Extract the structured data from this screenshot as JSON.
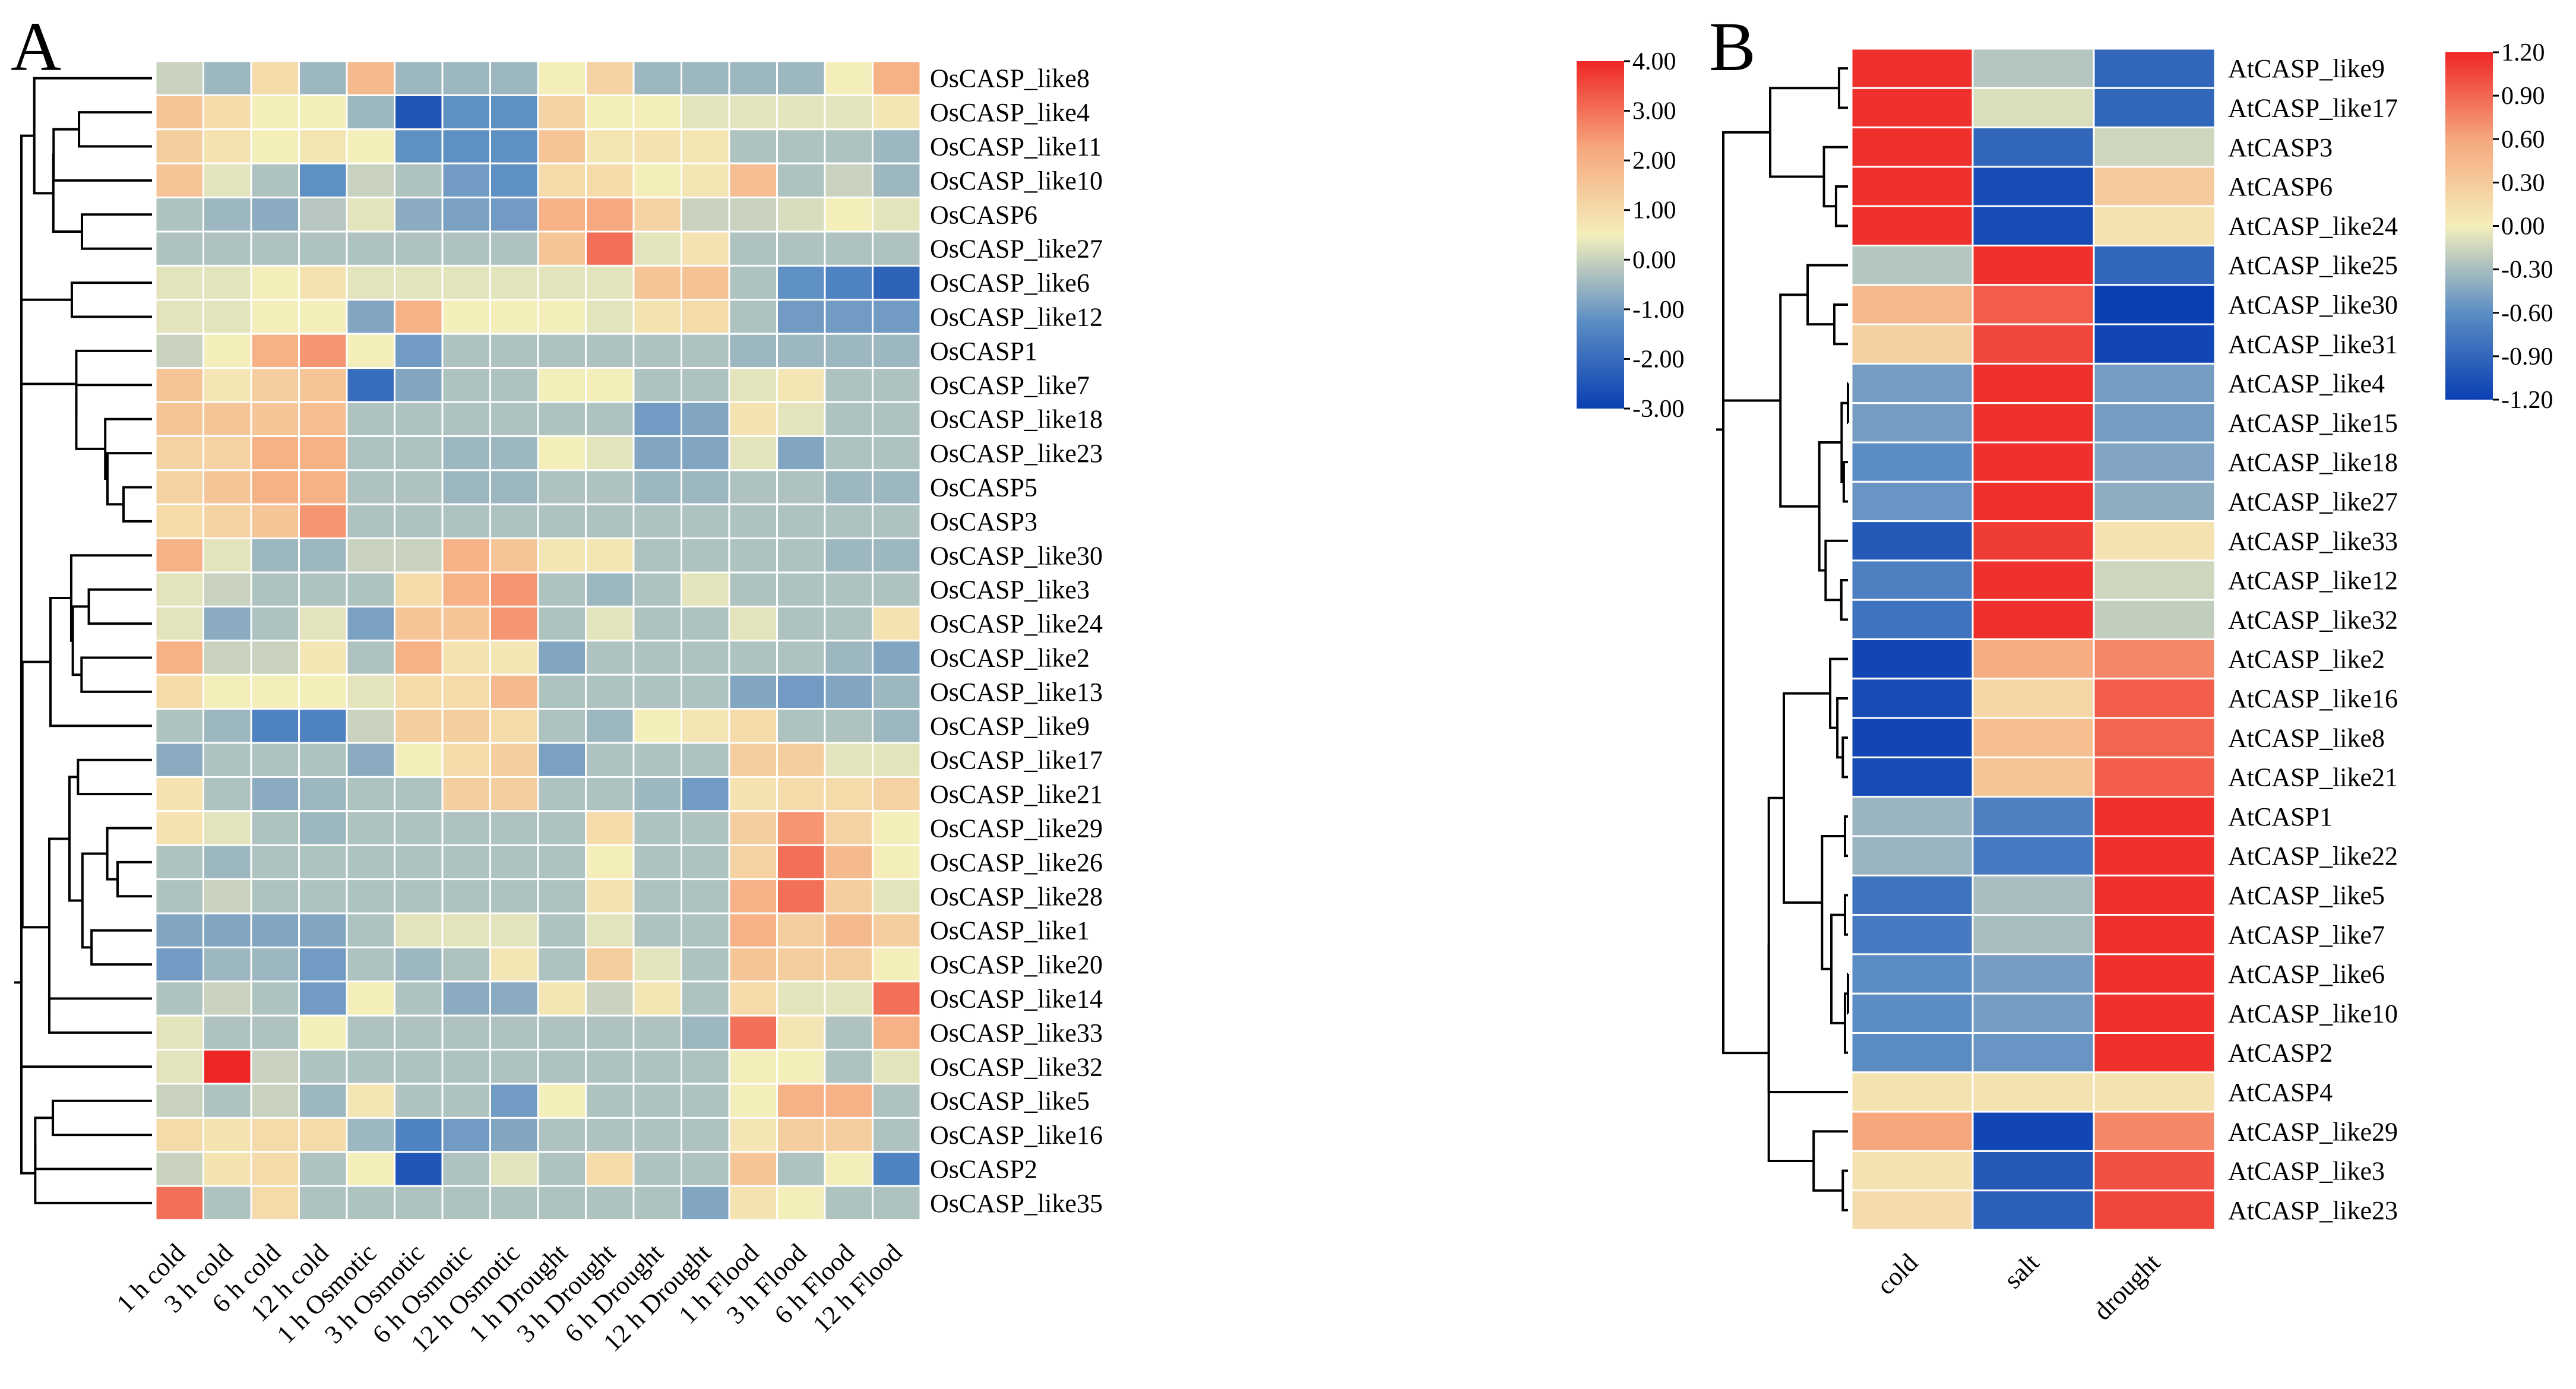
{
  "colors": {
    "scale_low": "#0a3fb2",
    "scale_mid_low": "#5b8dc4",
    "scale_mid": "#f4eebb",
    "scale_mid_high": "#f6a77e",
    "scale_high": "#ee2626",
    "cell_border": "#ffffff",
    "dendrogram": "#000000"
  },
  "chart_data": [
    {
      "type": "heatmap",
      "panel": "A",
      "columns": [
        "1 h cold",
        "3 h cold",
        "6 h cold",
        "12 h cold",
        "1 h Osmotic",
        "3 h Osmotic",
        "6 h Osmotic",
        "12 h Osmotic",
        "1 h Drought",
        "3 h Drought",
        "6 h Drought",
        "12 h Drought",
        "1 h Flood",
        "3 h Flood",
        "6 h Flood",
        "12 h Flood"
      ],
      "rows": [
        "OsCASP_like8",
        "OsCASP_like4",
        "OsCASP_like11",
        "OsCASP_like10",
        "OsCASP6",
        "OsCASP_like27",
        "OsCASP_like6",
        "OsCASP_like12",
        "OsCASP1",
        "OsCASP_like7",
        "OsCASP_like18",
        "OsCASP_like23",
        "OsCASP5",
        "OsCASP3",
        "OsCASP_like30",
        "OsCASP_like3",
        "OsCASP_like24",
        "OsCASP_like2",
        "OsCASP_like13",
        "OsCASP_like9",
        "OsCASP_like17",
        "OsCASP_like21",
        "OsCASP_like29",
        "OsCASP_like26",
        "OsCASP_like28",
        "OsCASP_like1",
        "OsCASP_like20",
        "OsCASP_like14",
        "OsCASP_like33",
        "OsCASP_like32",
        "OsCASP_like5",
        "OsCASP_like16",
        "OsCASP2",
        "OsCASP_like35"
      ],
      "values": [
        [
          0.0,
          -0.5,
          1.0,
          -0.5,
          1.8,
          -0.5,
          -0.5,
          -0.5,
          0.5,
          1.2,
          -0.5,
          -0.5,
          -0.5,
          -0.5,
          0.5,
          2.0
        ],
        [
          1.5,
          1.0,
          0.5,
          0.5,
          -0.5,
          -2.5,
          -1.2,
          -1.2,
          1.2,
          0.5,
          0.5,
          0.3,
          0.3,
          0.3,
          0.3,
          0.7
        ],
        [
          1.3,
          0.8,
          0.5,
          0.7,
          0.5,
          -1.2,
          -1.2,
          -1.2,
          1.5,
          0.7,
          0.8,
          0.7,
          -0.3,
          -0.3,
          -0.3,
          -0.5
        ],
        [
          1.5,
          0.3,
          -0.3,
          -1.2,
          0.0,
          -0.3,
          -1.0,
          -1.2,
          1.0,
          1.0,
          0.5,
          0.7,
          1.7,
          -0.3,
          0.0,
          -0.5
        ],
        [
          -0.3,
          -0.5,
          -0.7,
          -0.2,
          0.3,
          -0.7,
          -0.9,
          -1.0,
          2.0,
          2.2,
          1.2,
          0.0,
          0.0,
          0.2,
          0.5,
          0.3
        ],
        [
          -0.3,
          -0.3,
          -0.3,
          -0.3,
          -0.3,
          -0.3,
          -0.3,
          -0.3,
          1.5,
          3.0,
          0.3,
          0.8,
          -0.3,
          -0.3,
          -0.3,
          -0.3
        ],
        [
          0.3,
          0.3,
          0.5,
          0.8,
          0.3,
          0.3,
          0.3,
          0.3,
          0.3,
          0.3,
          1.5,
          1.6,
          -0.3,
          -1.2,
          -1.5,
          -2.2
        ],
        [
          0.3,
          0.3,
          0.5,
          0.5,
          -0.8,
          2.0,
          0.5,
          0.5,
          0.5,
          0.3,
          0.8,
          1.0,
          -0.3,
          -1.0,
          -1.0,
          -1.0
        ],
        [
          0.0,
          0.5,
          2.0,
          2.5,
          0.5,
          -1.0,
          -0.3,
          -0.3,
          -0.3,
          -0.3,
          -0.3,
          -0.3,
          -0.5,
          -0.5,
          -0.5,
          -0.5
        ],
        [
          1.5,
          0.7,
          1.3,
          1.5,
          -2.0,
          -0.8,
          -0.3,
          -0.3,
          0.5,
          0.5,
          -0.3,
          -0.3,
          0.3,
          0.7,
          -0.3,
          -0.3
        ],
        [
          1.5,
          1.5,
          1.5,
          1.7,
          -0.3,
          -0.3,
          -0.3,
          -0.3,
          -0.3,
          -0.3,
          -1.0,
          -0.8,
          0.8,
          0.3,
          -0.3,
          -0.3
        ],
        [
          1.2,
          1.2,
          2.0,
          2.0,
          -0.3,
          -0.3,
          -0.5,
          -0.5,
          0.5,
          0.3,
          -0.8,
          -0.8,
          0.3,
          -0.8,
          -0.3,
          -0.3
        ],
        [
          1.2,
          1.5,
          2.0,
          2.0,
          -0.3,
          -0.3,
          -0.5,
          -0.5,
          -0.3,
          -0.3,
          -0.5,
          -0.5,
          -0.3,
          -0.3,
          -0.5,
          -0.5
        ],
        [
          1.0,
          1.2,
          1.5,
          2.5,
          -0.3,
          -0.3,
          -0.3,
          -0.3,
          -0.3,
          -0.3,
          -0.3,
          -0.3,
          -0.3,
          -0.3,
          -0.3,
          -0.3
        ],
        [
          2.0,
          0.3,
          -0.5,
          -0.5,
          0.0,
          0.0,
          2.0,
          1.5,
          0.7,
          0.7,
          -0.3,
          -0.3,
          -0.3,
          -0.3,
          -0.5,
          -0.5
        ],
        [
          0.3,
          0.0,
          -0.3,
          -0.3,
          -0.3,
          1.0,
          2.0,
          2.5,
          -0.3,
          -0.5,
          -0.3,
          0.3,
          -0.3,
          -0.3,
          -0.3,
          -0.3
        ],
        [
          0.3,
          -0.7,
          -0.3,
          0.3,
          -0.9,
          1.5,
          1.5,
          2.5,
          -0.3,
          0.3,
          -0.3,
          -0.3,
          0.3,
          -0.3,
          -0.3,
          0.8
        ],
        [
          2.0,
          0.0,
          0.0,
          0.7,
          -0.3,
          2.0,
          0.8,
          0.7,
          -0.8,
          -0.3,
          -0.3,
          -0.3,
          -0.3,
          -0.3,
          -0.5,
          -0.8
        ],
        [
          1.0,
          0.5,
          0.5,
          0.5,
          0.3,
          1.0,
          1.0,
          1.8,
          -0.3,
          -0.3,
          -0.3,
          -0.3,
          -0.8,
          -1.0,
          -0.8,
          -0.5
        ],
        [
          -0.3,
          -0.5,
          -1.5,
          -1.5,
          0.0,
          1.3,
          1.3,
          1.0,
          -0.3,
          -0.5,
          0.5,
          0.7,
          1.0,
          -0.3,
          -0.3,
          -0.5
        ],
        [
          -0.7,
          -0.3,
          -0.3,
          -0.3,
          -0.7,
          0.5,
          1.0,
          1.3,
          -0.9,
          -0.3,
          -0.3,
          -0.3,
          1.3,
          1.3,
          0.3,
          0.3
        ],
        [
          0.8,
          -0.3,
          -0.7,
          -0.5,
          -0.3,
          -0.3,
          1.3,
          1.3,
          -0.3,
          -0.3,
          -0.5,
          -1.0,
          0.8,
          1.0,
          1.0,
          1.2
        ],
        [
          0.8,
          0.3,
          -0.3,
          -0.5,
          -0.3,
          -0.3,
          -0.3,
          -0.3,
          -0.3,
          1.0,
          -0.3,
          -0.3,
          1.3,
          2.5,
          1.2,
          0.5
        ],
        [
          -0.3,
          -0.5,
          -0.3,
          -0.3,
          -0.3,
          -0.3,
          -0.3,
          -0.3,
          -0.3,
          0.5,
          -0.3,
          -0.3,
          1.2,
          3.0,
          1.8,
          0.5
        ],
        [
          -0.3,
          0.0,
          -0.3,
          -0.3,
          -0.3,
          -0.3,
          -0.3,
          -0.3,
          -0.3,
          0.8,
          -0.3,
          -0.3,
          2.0,
          3.0,
          1.3,
          0.3
        ],
        [
          -0.8,
          -0.8,
          -0.8,
          -0.8,
          -0.3,
          0.3,
          0.3,
          0.3,
          -0.3,
          0.3,
          -0.3,
          -0.3,
          2.0,
          1.3,
          1.8,
          1.3
        ],
        [
          -1.0,
          -0.5,
          -0.5,
          -1.0,
          -0.3,
          -0.5,
          -0.3,
          0.7,
          -0.3,
          1.3,
          0.3,
          -0.3,
          1.5,
          1.3,
          1.3,
          0.5
        ],
        [
          -0.3,
          0.0,
          -0.3,
          -1.0,
          0.5,
          -0.3,
          -0.7,
          -0.7,
          0.7,
          0.0,
          0.7,
          -0.3,
          1.0,
          0.3,
          0.3,
          3.0
        ],
        [
          0.3,
          -0.3,
          -0.3,
          0.5,
          -0.3,
          -0.3,
          -0.3,
          -0.3,
          -0.3,
          -0.3,
          -0.3,
          -0.5,
          3.0,
          0.7,
          -0.3,
          2.0
        ],
        [
          0.3,
          4.0,
          0.0,
          -0.3,
          -0.3,
          -0.3,
          -0.3,
          -0.3,
          -0.3,
          -0.3,
          -0.3,
          -0.3,
          0.5,
          0.5,
          -0.3,
          0.3
        ],
        [
          0.0,
          -0.3,
          0.0,
          -0.5,
          0.7,
          -0.3,
          -0.3,
          -1.0,
          0.5,
          -0.3,
          -0.3,
          -0.3,
          0.5,
          2.0,
          2.0,
          -0.3
        ],
        [
          1.0,
          0.8,
          1.0,
          1.0,
          -0.5,
          -1.5,
          -1.0,
          -0.8,
          -0.3,
          -0.3,
          -0.3,
          -0.3,
          0.7,
          1.3,
          1.3,
          -0.3
        ],
        [
          0.0,
          0.8,
          1.0,
          -0.3,
          0.5,
          -2.5,
          -0.3,
          0.3,
          -0.3,
          1.0,
          -0.3,
          -0.3,
          1.5,
          -0.3,
          0.5,
          -1.5
        ],
        [
          3.0,
          -0.3,
          1.0,
          -0.3,
          -0.3,
          -0.3,
          -0.3,
          -0.3,
          -0.3,
          -0.3,
          -0.3,
          -0.8,
          0.8,
          0.5,
          -0.3,
          -0.3
        ]
      ],
      "color_range": [
        -3.0,
        4.0
      ],
      "colorbar_ticks": [
        "4.00",
        "3.00",
        "2.00",
        "1.00",
        "0.00",
        "-1.00",
        "-2.00",
        "-3.00"
      ],
      "dendrogram": "rows"
    },
    {
      "type": "heatmap",
      "panel": "B",
      "columns": [
        "cold",
        "salt",
        "drought"
      ],
      "rows": [
        "AtCASP_like9",
        "AtCASP_like17",
        "AtCASP3",
        "AtCASP6",
        "AtCASP_like24",
        "AtCASP_like25",
        "AtCASP_like30",
        "AtCASP_like31",
        "AtCASP_like4",
        "AtCASP_like15",
        "AtCASP_like18",
        "AtCASP_like27",
        "AtCASP_like33",
        "AtCASP_like12",
        "AtCASP_like32",
        "AtCASP_like2",
        "AtCASP_like16",
        "AtCASP_like8",
        "AtCASP_like21",
        "AtCASP1",
        "AtCASP_like22",
        "AtCASP_like5",
        "AtCASP_like7",
        "AtCASP_like6",
        "AtCASP_like10",
        "AtCASP2",
        "AtCASP4",
        "AtCASP_like29",
        "AtCASP_like3",
        "AtCASP_like23"
      ],
      "values": [
        [
          1.15,
          -0.25,
          -0.9
        ],
        [
          1.15,
          -0.1,
          -0.9
        ],
        [
          1.15,
          -0.9,
          -0.15
        ],
        [
          1.15,
          -1.1,
          0.3
        ],
        [
          1.15,
          -1.1,
          0.1
        ],
        [
          -0.25,
          1.15,
          -0.9
        ],
        [
          0.45,
          0.95,
          -1.2
        ],
        [
          0.25,
          1.05,
          -1.15
        ],
        [
          -0.5,
          1.15,
          -0.5
        ],
        [
          -0.5,
          1.15,
          -0.5
        ],
        [
          -0.6,
          1.15,
          -0.45
        ],
        [
          -0.55,
          1.15,
          -0.4
        ],
        [
          -1.0,
          1.1,
          0.1
        ],
        [
          -0.7,
          1.15,
          -0.15
        ],
        [
          -0.8,
          1.15,
          -0.2
        ],
        [
          -1.15,
          0.55,
          0.75
        ],
        [
          -1.1,
          0.2,
          0.95
        ],
        [
          -1.15,
          0.4,
          0.9
        ],
        [
          -1.1,
          0.35,
          0.95
        ],
        [
          -0.35,
          -0.7,
          1.15
        ],
        [
          -0.35,
          -0.75,
          1.15
        ],
        [
          -0.8,
          -0.3,
          1.15
        ],
        [
          -0.75,
          -0.3,
          1.15
        ],
        [
          -0.6,
          -0.5,
          1.15
        ],
        [
          -0.6,
          -0.5,
          1.15
        ],
        [
          -0.6,
          -0.55,
          1.15
        ],
        [
          0.1,
          0.1,
          0.1
        ],
        [
          0.6,
          -1.15,
          0.75
        ],
        [
          0.1,
          -1.0,
          1.0
        ],
        [
          0.15,
          -0.95,
          1.05
        ]
      ],
      "color_range": [
        -1.2,
        1.2
      ],
      "colorbar_ticks": [
        "1.20",
        "0.90",
        "0.60",
        "0.30",
        "0.00",
        "-0.30",
        "-0.60",
        "-0.90",
        "-1.20"
      ],
      "dendrogram": "rows"
    }
  ]
}
